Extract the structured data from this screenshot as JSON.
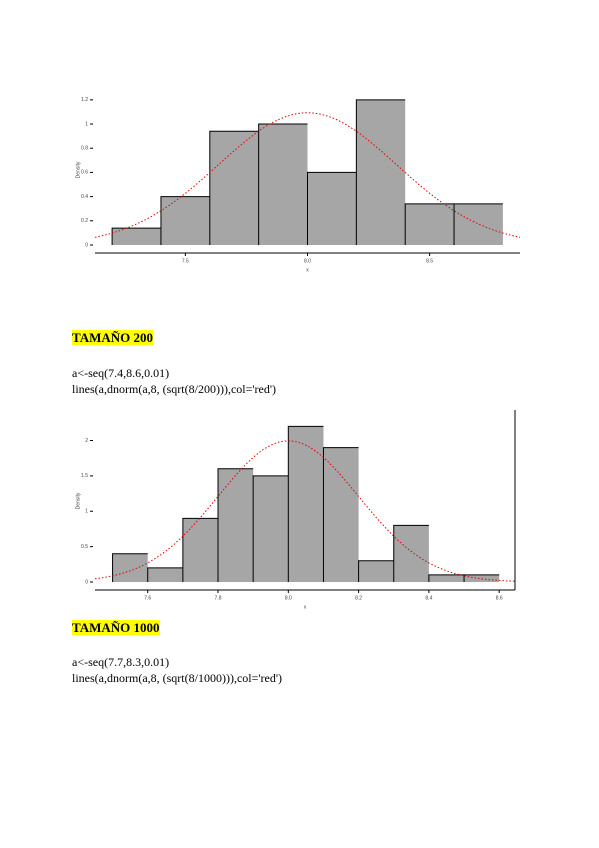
{
  "chart_data": [
    {
      "type": "histogram",
      "xlabel": "x",
      "ylabel": "Density",
      "bins": [
        7.2,
        7.4,
        7.6,
        7.8,
        8.0,
        8.2,
        8.4,
        8.6,
        8.8
      ],
      "values": [
        0.14,
        0.4,
        0.94,
        1.0,
        0.6,
        1.2,
        0.34,
        0.34
      ],
      "color": "#a6a6a6",
      "curve": {
        "mean": 8,
        "sd": 0.365,
        "color": "#e00000"
      },
      "xlim": [
        7.13,
        8.87
      ],
      "ylim": [
        0,
        1.24
      ],
      "xticks": [
        7.5,
        {
          "value": 8,
          "label": "8.0"
        },
        8.5
      ],
      "yticks": [
        0,
        0.2,
        0.4,
        0.6,
        0.8,
        1,
        1.2
      ]
    },
    {
      "type": "histogram",
      "xlabel": "x",
      "ylabel": "Density",
      "bins": [
        7.5,
        7.6,
        7.7,
        7.8,
        7.9,
        8.0,
        8.1,
        8.2,
        8.3,
        8.4,
        8.5,
        8.6
      ],
      "values": [
        0.4,
        0.2,
        0.9,
        1.6,
        1.5,
        2.2,
        1.9,
        0.3,
        0.8,
        0.1,
        0.1
      ],
      "color": "#a6a6a6",
      "curve": {
        "mean": 8,
        "sd": 0.2,
        "color": "#e00000"
      },
      "xlim": [
        7.45,
        8.645
      ],
      "ylim": [
        0,
        2.29
      ],
      "xticks": [
        7.6,
        7.8,
        {
          "value": 8,
          "label": "8.0"
        },
        8.2,
        8.4,
        8.6
      ],
      "yticks": [
        0,
        0.5,
        1,
        1.5,
        2
      ]
    }
  ],
  "sections": [
    {
      "heading": "TAMAÑO 200",
      "code": [
        "a<-seq(7.4,8.6,0.01)",
        "lines(a,dnorm(a,8, (sqrt(8/200))),col='red')"
      ]
    },
    {
      "heading": "TAMAÑO 1000",
      "code": [
        "a<-seq(7.7,8.3,0.01)",
        "lines(a,dnorm(a,8, (sqrt(8/1000))),col='red')"
      ]
    }
  ]
}
